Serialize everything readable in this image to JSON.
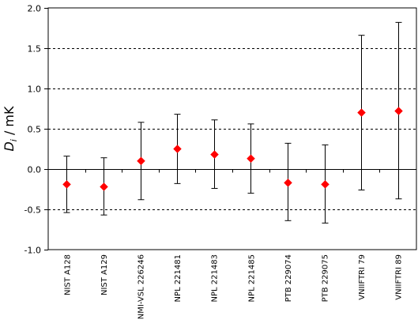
{
  "chart_data": {
    "type": "scatter",
    "ylabel_symbol": "D",
    "ylabel_subscript": "i",
    "ylabel_unit": " / mK",
    "ylim": [
      -1.0,
      2.0
    ],
    "y_ticks": [
      "-1.0",
      "-0.5",
      "0.0",
      "0.5",
      "1.0",
      "1.5",
      "2.0"
    ],
    "y_tick_values": [
      -1.0,
      -0.5,
      0.0,
      0.5,
      1.0,
      1.5,
      2.0
    ],
    "dashed_gridlines": [
      -0.5,
      0.5,
      1.0,
      1.5
    ],
    "zero_line": 0.0,
    "marker": "diamond",
    "marker_color": "#ff0000",
    "categories": [
      "NIST A128",
      "NIST A129",
      "NMI-VSL 226246",
      "NPL 221481",
      "NPL 221483",
      "NPL 221485",
      "PTB 229074",
      "PTB 229075",
      "VNIIFTRI 79",
      "VNIIFTRI 89"
    ],
    "values": [
      -0.19,
      -0.22,
      0.1,
      0.25,
      0.18,
      0.13,
      -0.17,
      -0.19,
      0.7,
      0.72
    ],
    "upper": [
      0.16,
      0.14,
      0.58,
      0.68,
      0.61,
      0.56,
      0.32,
      0.3,
      1.66,
      1.82
    ],
    "lower": [
      -0.54,
      -0.57,
      -0.38,
      -0.18,
      -0.24,
      -0.3,
      -0.64,
      -0.67,
      -0.26,
      -0.37
    ]
  }
}
